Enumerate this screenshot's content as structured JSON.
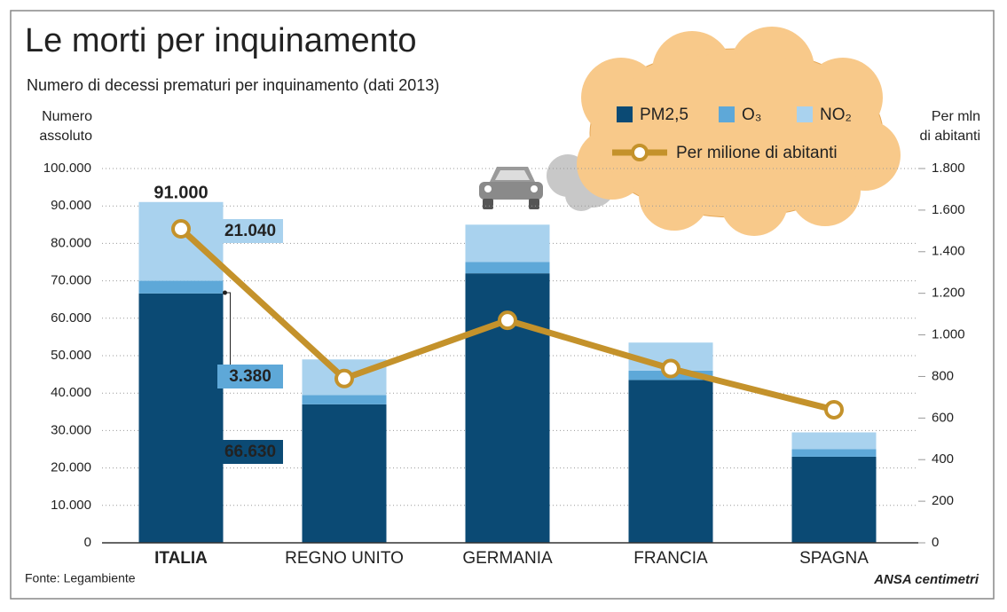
{
  "chart_data": {
    "type": "stacked_bar_line",
    "title": "Le morti per inquinamento",
    "subtitle": "Numero di decessi prematuri per inquinamento (dati 2013)",
    "ylabel": [
      "Numero",
      "assoluto"
    ],
    "y2label": [
      "Per mln",
      "di abitanti"
    ],
    "categories": [
      "ITALIA",
      "REGNO UNITO",
      "GERMANIA",
      "FRANCIA",
      "SPAGNA"
    ],
    "series": [
      {
        "name": "PM2,5",
        "color": "#0b4a74",
        "values": [
          66630,
          37000,
          72000,
          43500,
          23000
        ],
        "value_labels": [
          "66.630",
          null,
          null,
          null,
          null
        ]
      },
      {
        "name": "O₃",
        "color": "#5ea8d8",
        "values": [
          3380,
          2500,
          3000,
          2500,
          2000
        ],
        "value_labels": [
          "3.380",
          null,
          null,
          null,
          null
        ]
      },
      {
        "name": "NO₂",
        "color": "#a9d2ee",
        "values": [
          21040,
          9500,
          10000,
          7500,
          4500
        ],
        "value_labels": [
          "21.040",
          null,
          null,
          null,
          null
        ]
      },
      {
        "name": "Per milione di abitanti",
        "color": "#c4922b",
        "axis": "y2",
        "type": "line",
        "values": [
          1510,
          790,
          1070,
          838,
          640
        ]
      }
    ],
    "annotations": [
      {
        "text": "91.000"
      }
    ],
    "ylim": [
      0,
      100000
    ],
    "yticks": [
      0,
      {
        "value": 10000,
        "label": "10.000"
      },
      {
        "value": 20000,
        "label": "20.000"
      },
      {
        "value": 30000,
        "label": "30.000"
      },
      {
        "value": 40000,
        "label": "40.000"
      },
      {
        "value": 50000,
        "label": "50.000"
      },
      {
        "value": 60000,
        "label": "60.000"
      },
      {
        "value": 70000,
        "label": "70.000"
      },
      {
        "value": 80000,
        "label": "80.000"
      },
      {
        "value": 90000,
        "label": "90.000"
      },
      {
        "value": 100000,
        "label": "100.000"
      }
    ],
    "y2lim": [
      0,
      1800
    ],
    "y2ticks": [
      0,
      200,
      400,
      600,
      800,
      {
        "value": 1000,
        "label": "1.000"
      },
      {
        "value": 1200,
        "label": "1.200"
      },
      {
        "value": 1400,
        "label": "1.400"
      },
      {
        "value": 1600,
        "label": "1.600"
      },
      {
        "value": 1800,
        "label": "1.800"
      }
    ],
    "grid": true,
    "source": "Fonte: Legambiente",
    "credit": "ANSA centimetri"
  }
}
